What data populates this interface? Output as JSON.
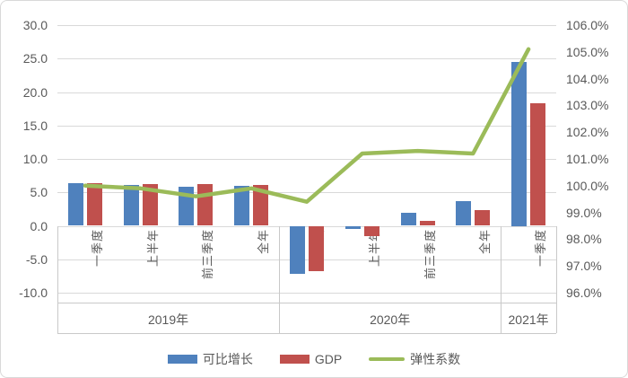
{
  "chart_data": {
    "type": "combo-bar-line",
    "title": "",
    "categories": [
      "一季度",
      "上半年",
      "前三季度",
      "全年",
      "一季度",
      "上半年",
      "前三季度",
      "全年",
      "一季度"
    ],
    "year_groups": [
      {
        "label": "2019年",
        "span": 4
      },
      {
        "label": "2020年",
        "span": 4
      },
      {
        "label": "2021年",
        "span": 1
      }
    ],
    "series": [
      {
        "name": "可比增长",
        "type": "bar",
        "axis": "left",
        "color": "#4F81BD",
        "values": [
          6.4,
          6.1,
          5.8,
          6.0,
          -7.2,
          -0.5,
          1.9,
          3.7,
          24.5
        ]
      },
      {
        "name": "GDP",
        "type": "bar",
        "axis": "left",
        "color": "#C0504D",
        "values": [
          6.4,
          6.3,
          6.2,
          6.1,
          -6.8,
          -1.6,
          0.7,
          2.3,
          18.3
        ]
      },
      {
        "name": "弹性系数",
        "type": "line",
        "axis": "right",
        "color": "#9BBB59",
        "values": [
          100.0,
          99.9,
          99.6,
          99.9,
          99.4,
          101.2,
          101.3,
          101.2,
          105.1
        ]
      }
    ],
    "left_axis": {
      "min": -10,
      "max": 30,
      "step": 5,
      "tick_values": [
        30,
        25,
        20,
        15,
        10,
        5,
        0,
        -5,
        -10
      ],
      "tick_labels": [
        "30.0",
        "25.0",
        "20.0",
        "15.0",
        "10.0",
        "5.0",
        "0.0",
        "-5.0",
        "-10.0"
      ]
    },
    "right_axis": {
      "min": 96,
      "max": 106,
      "step": 1,
      "tick_values": [
        106,
        105,
        104,
        103,
        102,
        101,
        100,
        99,
        98,
        97,
        96
      ],
      "tick_labels": [
        "106.0%",
        "105.0%",
        "104.0%",
        "103.0%",
        "102.0%",
        "101.0%",
        "100.0%",
        "99.0%",
        "98.0%",
        "97.0%",
        "96.0%"
      ]
    },
    "legend": {
      "position": "bottom",
      "items": [
        "可比增长",
        "GDP",
        "弹性系数"
      ]
    },
    "grid": true,
    "colors": {
      "gridline": "#d9d9d9",
      "axis_table_border": "#c9c9c9",
      "text": "#595959"
    }
  }
}
